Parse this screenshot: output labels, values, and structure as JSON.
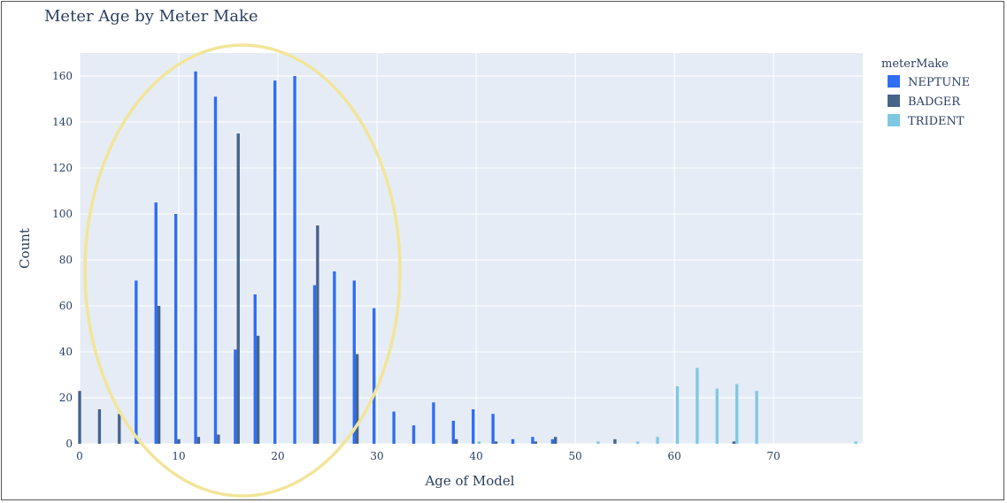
{
  "chart_data": {
    "type": "bar",
    "title": "Meter Age by Meter Make",
    "xlabel": "Age of Model",
    "ylabel": "Count",
    "xlim": [
      0,
      79
    ],
    "ylim": [
      0,
      170
    ],
    "x_ticks": [
      0,
      10,
      20,
      30,
      40,
      50,
      60,
      70
    ],
    "y_ticks": [
      0,
      20,
      40,
      60,
      80,
      100,
      120,
      140,
      160
    ],
    "grid": true,
    "legend_title": "meterMake",
    "legend_position": "top-right",
    "annotation": "yellow ellipse highlighting ages ~0-32",
    "colors": {
      "NEPTUNE": "#2f6df6",
      "BADGER": "#46648a",
      "TRIDENT": "#7ec8e3",
      "plot_bg": "#e5ecf6",
      "annotation": "#f2e59a"
    },
    "series": [
      {
        "name": "NEPTUNE",
        "points": [
          [
            6,
            71
          ],
          [
            8,
            105
          ],
          [
            10,
            100
          ],
          [
            12,
            162
          ],
          [
            14,
            151
          ],
          [
            16,
            41
          ],
          [
            18,
            65
          ],
          [
            20,
            158
          ],
          [
            22,
            160
          ],
          [
            24,
            69
          ],
          [
            26,
            75
          ],
          [
            28,
            71
          ],
          [
            30,
            59
          ],
          [
            32,
            14
          ],
          [
            34,
            8
          ],
          [
            36,
            18
          ],
          [
            38,
            10
          ],
          [
            40,
            15
          ],
          [
            42,
            13
          ],
          [
            44,
            2
          ],
          [
            46,
            3
          ],
          [
            48,
            2
          ]
        ]
      },
      {
        "name": "BADGER",
        "points": [
          [
            0,
            23
          ],
          [
            2,
            15
          ],
          [
            4,
            13
          ],
          [
            6,
            2
          ],
          [
            8,
            60
          ],
          [
            10,
            2
          ],
          [
            12,
            3
          ],
          [
            14,
            4
          ],
          [
            16,
            135
          ],
          [
            18,
            47
          ],
          [
            24,
            95
          ],
          [
            28,
            39
          ],
          [
            38,
            2
          ],
          [
            42,
            1
          ],
          [
            46,
            1
          ],
          [
            48,
            3
          ],
          [
            54,
            2
          ],
          [
            66,
            1
          ]
        ]
      },
      {
        "name": "TRIDENT",
        "points": [
          [
            40,
            1
          ],
          [
            52,
            1
          ],
          [
            56,
            1
          ],
          [
            58,
            3
          ],
          [
            60,
            25
          ],
          [
            62,
            33
          ],
          [
            64,
            24
          ],
          [
            66,
            26
          ],
          [
            68,
            23
          ],
          [
            78,
            1
          ]
        ]
      }
    ]
  }
}
